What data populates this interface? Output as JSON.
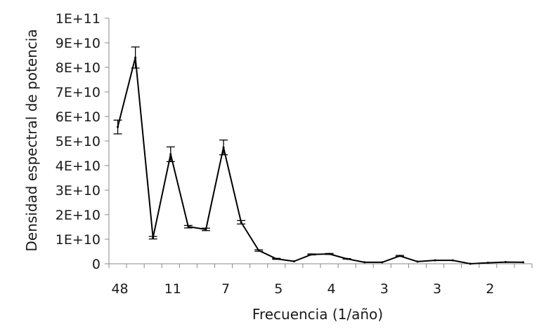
{
  "chart_data": {
    "type": "line",
    "title": "",
    "xlabel": "Frecuencia (1/año)",
    "ylabel": "Densidad espectral de potencia",
    "ylim": [
      0,
      100000000000
    ],
    "y_ticks": [
      "0",
      "1E+10",
      "2E+10",
      "3E+10",
      "4E+10",
      "5E+10",
      "6E+10",
      "7E+10",
      "8E+10",
      "9E+10",
      "1E+11"
    ],
    "x_tick_labels": [
      "48",
      "",
      "",
      "11",
      "",
      "",
      "7",
      "",
      "",
      "5",
      "",
      "",
      "4",
      "",
      "",
      "3",
      "",
      "",
      "3",
      "",
      "",
      "2",
      "",
      ""
    ],
    "grid": false,
    "legend": "none",
    "line_color": "#000000",
    "series": [
      {
        "values": [
          55700000000.0,
          84000000000.0,
          10600000000.0,
          44600000000.0,
          15100000000.0,
          14000000000.0,
          47400000000.0,
          16900000000.0,
          5400000000.0,
          2000000000.0,
          1000000000.0,
          3800000000.0,
          4000000000.0,
          2000000000.0,
          600000000.0,
          600000000.0,
          3200000000.0,
          900000000.0,
          1400000000.0,
          1400000000.0,
          0.0,
          400000000.0,
          700000000.0,
          600000000.0
        ],
        "error": [
          2800000000.0,
          4300000000.0,
          500000000.0,
          3000000000.0,
          500000000.0,
          500000000.0,
          3000000000.0,
          700000000.0,
          300000000.0,
          200000000.0,
          0,
          200000000.0,
          200000000.0,
          100000000.0,
          0,
          0,
          200000000.0,
          0,
          0,
          0,
          0,
          0,
          0,
          0
        ]
      }
    ]
  }
}
